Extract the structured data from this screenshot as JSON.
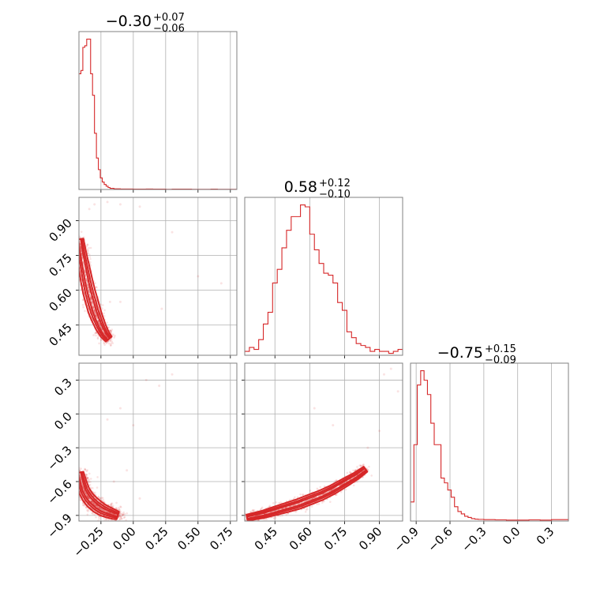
{
  "chart_data": {
    "type": "corner",
    "color": "#d62728",
    "grid": true,
    "parameters": [
      {
        "title": {
          "median": "−0.30",
          "plus": "+0.07",
          "minus": "−0.06"
        },
        "range": [
          -0.42,
          0.8
        ],
        "ticks": [
          -0.25,
          0.0,
          0.25,
          0.5,
          0.75
        ],
        "tick_labels": [
          "−0.25",
          "0.00",
          "0.25",
          "0.50",
          "0.75"
        ],
        "hist": {
          "edges": [
            -0.42,
            -0.405,
            -0.39,
            -0.375,
            -0.36,
            -0.345,
            -0.33,
            -0.315,
            -0.3,
            -0.285,
            -0.27,
            -0.255,
            -0.24,
            -0.225,
            -0.21,
            -0.195,
            -0.18,
            -0.15,
            -0.1,
            -0.05,
            0.0,
            0.05,
            0.1,
            0.15,
            0.2,
            0.25,
            0.3,
            0.35,
            0.4,
            0.45,
            0.5,
            0.55,
            0.6,
            0.65,
            0.7,
            0.75,
            0.8
          ],
          "counts": [
            0.7,
            0.72,
            0.86,
            0.87,
            0.91,
            0.91,
            0.7,
            0.57,
            0.34,
            0.19,
            0.12,
            0.07,
            0.045,
            0.03,
            0.02,
            0.012,
            0.007,
            0.004,
            0.003,
            0.003,
            0.002,
            0.002,
            0.003,
            0.002,
            0.002,
            0.001,
            0.002,
            0.002,
            0.002,
            0.001,
            0.001,
            0.001,
            0.002,
            0.001,
            0.001,
            0.001
          ]
        }
      },
      {
        "title": {
          "median": "0.58",
          "plus": "+0.12",
          "minus": "−0.10"
        },
        "range": [
          0.32,
          1.0
        ],
        "ticks": [
          0.45,
          0.6,
          0.75,
          0.9
        ],
        "tick_labels": [
          "0.45",
          "0.60",
          "0.75",
          "0.90"
        ],
        "hist": {
          "edges": [
            0.32,
            0.34,
            0.36,
            0.38,
            0.4,
            0.42,
            0.44,
            0.46,
            0.48,
            0.5,
            0.52,
            0.54,
            0.56,
            0.58,
            0.6,
            0.62,
            0.64,
            0.66,
            0.68,
            0.7,
            0.72,
            0.74,
            0.76,
            0.78,
            0.8,
            0.82,
            0.84,
            0.86,
            0.88,
            0.9,
            0.92,
            0.94,
            0.96,
            0.98,
            1.0
          ],
          "counts": [
            0.02,
            0.04,
            0.03,
            0.08,
            0.16,
            0.22,
            0.37,
            0.44,
            0.55,
            0.64,
            0.71,
            0.71,
            0.77,
            0.76,
            0.62,
            0.54,
            0.47,
            0.42,
            0.41,
            0.37,
            0.27,
            0.23,
            0.12,
            0.09,
            0.06,
            0.05,
            0.04,
            0.02,
            0.03,
            0.02,
            0.02,
            0.01,
            0.02,
            0.03
          ]
        }
      },
      {
        "title": {
          "median": "−0.75",
          "plus": "+0.15",
          "minus": "−0.09"
        },
        "range": [
          -0.95,
          0.45
        ],
        "ticks": [
          -0.9,
          -0.6,
          -0.3,
          0.0,
          0.3
        ],
        "tick_labels": [
          "−0.9",
          "−0.6",
          "−0.3",
          "0.0",
          "0.3"
        ],
        "hist": {
          "edges": [
            -0.95,
            -0.92,
            -0.89,
            -0.86,
            -0.83,
            -0.8,
            -0.77,
            -0.74,
            -0.71,
            -0.68,
            -0.65,
            -0.62,
            -0.59,
            -0.56,
            -0.53,
            -0.5,
            -0.47,
            -0.44,
            -0.41,
            -0.38,
            -0.35,
            -0.3,
            -0.2,
            -0.1,
            0.0,
            0.1,
            0.2,
            0.3,
            0.45
          ],
          "counts": [
            0.08,
            0.32,
            0.57,
            0.63,
            0.59,
            0.53,
            0.41,
            0.32,
            0.32,
            0.18,
            0.16,
            0.13,
            0.1,
            0.06,
            0.04,
            0.03,
            0.02,
            0.015,
            0.01,
            0.008,
            0.007,
            0.006,
            0.005,
            0.004,
            0.004,
            0.005,
            0.004,
            0.006
          ]
        }
      }
    ],
    "panels_2d": [
      {
        "x_param": 0,
        "y_param": 1,
        "contour_ridge": [
          [
            -0.415,
            0.82
          ],
          [
            -0.4,
            0.76
          ],
          [
            -0.38,
            0.7
          ],
          [
            -0.36,
            0.64
          ],
          [
            -0.34,
            0.59
          ],
          [
            -0.32,
            0.55
          ],
          [
            -0.3,
            0.51
          ],
          [
            -0.28,
            0.48
          ],
          [
            -0.25,
            0.44
          ],
          [
            -0.22,
            0.41
          ],
          [
            -0.19,
            0.39
          ]
        ],
        "band_widths": [
          0.012,
          0.025,
          0.04
        ],
        "scatter_spread": 0.035,
        "outliers": [
          [
            -0.34,
            0.95
          ],
          [
            -0.3,
            0.97
          ],
          [
            -0.2,
            0.98
          ],
          [
            -0.1,
            0.97
          ],
          [
            0.05,
            0.96
          ],
          [
            0.3,
            0.85
          ],
          [
            0.5,
            0.66
          ],
          [
            -0.1,
            0.55
          ],
          [
            -0.18,
            0.55
          ],
          [
            0.68,
            0.63
          ],
          [
            0.22,
            0.52
          ]
        ]
      },
      {
        "x_param": 0,
        "y_param": 2,
        "contour_ridge": [
          [
            -0.415,
            -0.52
          ],
          [
            -0.4,
            -0.6
          ],
          [
            -0.38,
            -0.68
          ],
          [
            -0.35,
            -0.74
          ],
          [
            -0.32,
            -0.78
          ],
          [
            -0.28,
            -0.82
          ],
          [
            -0.24,
            -0.85
          ],
          [
            -0.2,
            -0.87
          ],
          [
            -0.15,
            -0.89
          ],
          [
            -0.12,
            -0.9
          ]
        ],
        "band_widths": [
          0.012,
          0.025,
          0.04
        ],
        "scatter_spread": 0.04,
        "outliers": [
          [
            -0.2,
            -0.05
          ],
          [
            -0.1,
            0.05
          ],
          [
            0.0,
            -0.1
          ],
          [
            0.1,
            0.3
          ],
          [
            0.2,
            0.25
          ],
          [
            0.3,
            0.35
          ],
          [
            -0.05,
            -0.5
          ],
          [
            -0.15,
            -0.6
          ],
          [
            0.05,
            -0.75
          ]
        ]
      },
      {
        "x_param": 1,
        "y_param": 2,
        "contour_ridge": [
          [
            0.33,
            -0.92
          ],
          [
            0.4,
            -0.89
          ],
          [
            0.45,
            -0.86
          ],
          [
            0.5,
            -0.83
          ],
          [
            0.55,
            -0.8
          ],
          [
            0.6,
            -0.76
          ],
          [
            0.65,
            -0.72
          ],
          [
            0.7,
            -0.67
          ],
          [
            0.75,
            -0.61
          ],
          [
            0.8,
            -0.55
          ],
          [
            0.84,
            -0.49
          ]
        ],
        "band_widths": [
          0.01,
          0.02,
          0.032
        ],
        "scatter_spread": 0.03,
        "outliers": [
          [
            0.95,
            0.4
          ],
          [
            0.92,
            0.35
          ],
          [
            0.98,
            0.2
          ],
          [
            0.7,
            -0.1
          ],
          [
            0.62,
            0.05
          ],
          [
            0.85,
            -0.3
          ],
          [
            0.9,
            -0.15
          ]
        ]
      }
    ]
  }
}
